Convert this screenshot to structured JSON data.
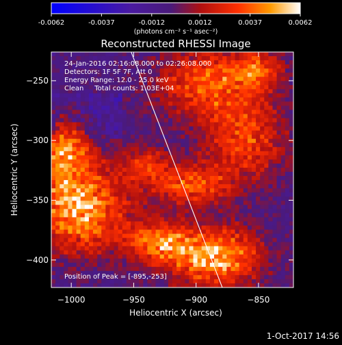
{
  "colorbar": {
    "tick_labels": [
      "-0.0062",
      "-0.0037",
      "-0.0012",
      "0.0012",
      "0.0037",
      "0.0062"
    ],
    "tick_values": [
      -0.0062,
      -0.0037,
      -0.0012,
      0.0012,
      0.0037,
      0.0062
    ],
    "unit_label": "(photons cm⁻² s⁻¹ asec⁻²)"
  },
  "chart_data": {
    "type": "heatmap",
    "title": "Reconstructed RHESSI Image",
    "xlabel": "Heliocentric X (arcsec)",
    "ylabel": "Heliocentric Y (arcsec)",
    "xlim": [
      -1016,
      -822
    ],
    "ylim": [
      -423,
      -226
    ],
    "x_ticks": [
      -1000,
      -950,
      -900,
      -850
    ],
    "x_tick_labels": [
      "−1000",
      "−950",
      "−900",
      "−850"
    ],
    "y_ticks": [
      -250,
      -300,
      -350,
      -400
    ],
    "y_tick_labels": [
      "−250",
      "−300",
      "−350",
      "−400"
    ],
    "value_range": [
      -0.0062,
      0.0062
    ],
    "limb_line": {
      "x": [
        -952,
        -879
      ],
      "y": [
        -226,
        -423
      ]
    },
    "peak_position": [
      -895,
      -253
    ],
    "annotations": [
      "24-Jan-2016 02:16:08.000 to 02:26:08.000",
      "Detectors: 1F 5F 7F, Att 0",
      "Energy Range: 12.0 - 25.0 keV",
      "Clean     Total counts: 1.03E+04",
      "Position of Peak = [-895,-253]"
    ],
    "blobs": [
      {
        "x": -995,
        "y": -355,
        "sx": 28,
        "sy": 26,
        "amp": 0.0058
      },
      {
        "x": -1005,
        "y": -305,
        "sx": 14,
        "sy": 18,
        "amp": 0.0045
      },
      {
        "x": -930,
        "y": -385,
        "sx": 18,
        "sy": 12,
        "amp": 0.0044
      },
      {
        "x": -885,
        "y": -398,
        "sx": 26,
        "sy": 18,
        "amp": 0.0056
      },
      {
        "x": -905,
        "y": -338,
        "sx": 22,
        "sy": 12,
        "amp": 0.004
      },
      {
        "x": -890,
        "y": -252,
        "sx": 30,
        "sy": 20,
        "amp": 0.004
      },
      {
        "x": -862,
        "y": -300,
        "sx": 24,
        "sy": 24,
        "amp": 0.0036
      },
      {
        "x": -940,
        "y": -320,
        "sx": 14,
        "sy": 10,
        "amp": 0.003
      },
      {
        "x": -850,
        "y": -240,
        "sx": 14,
        "sy": 12,
        "amp": 0.0028
      }
    ]
  },
  "footer": {
    "timestamp": "1-Oct-2017 14:56"
  }
}
